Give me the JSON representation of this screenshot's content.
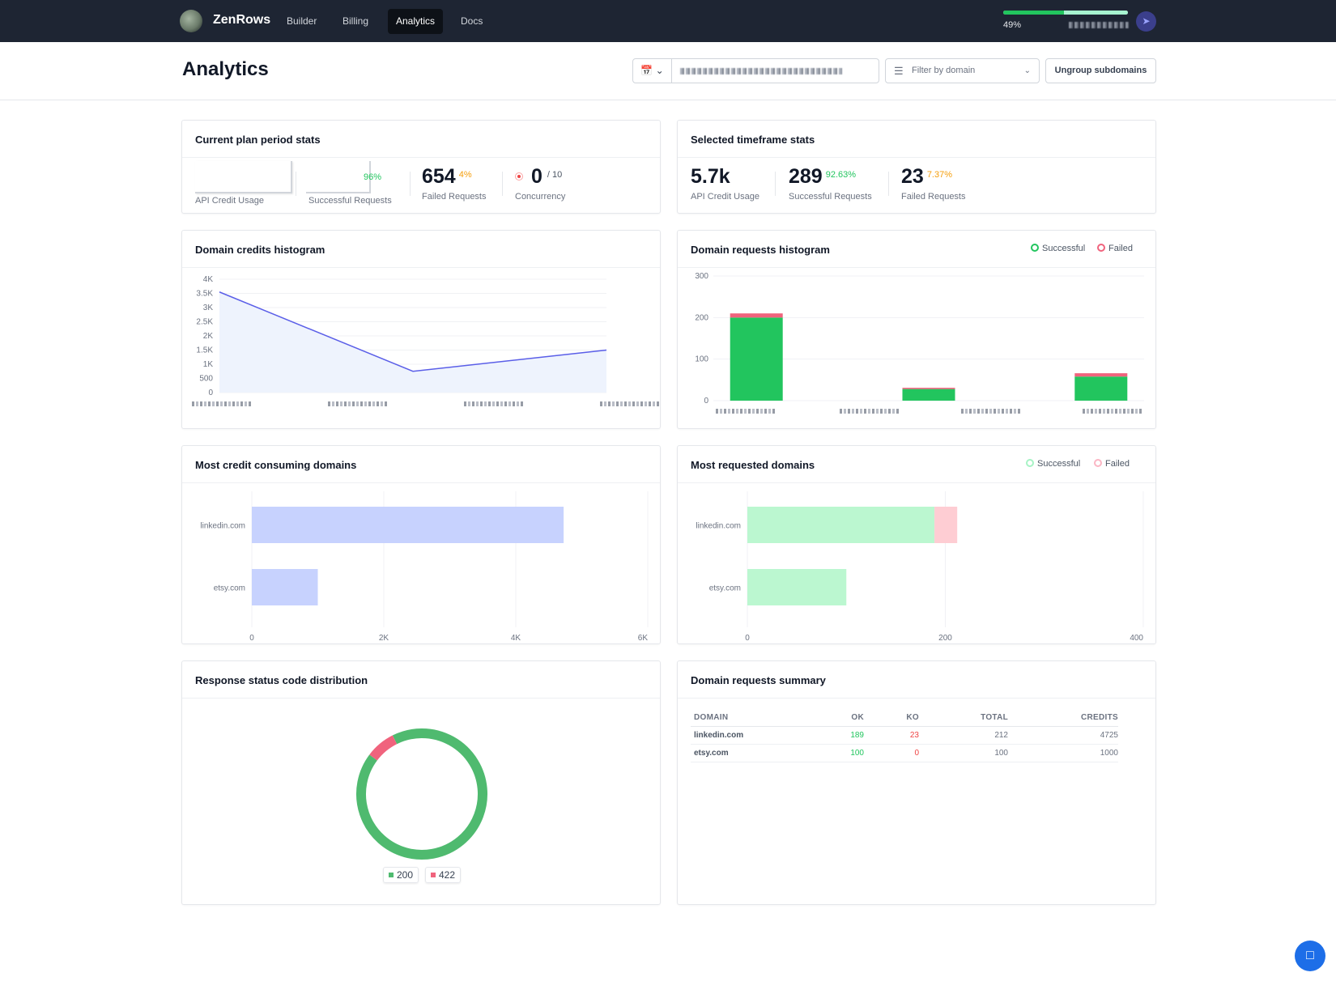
{
  "nav": {
    "brand": "ZenRows",
    "items": [
      {
        "label": "Builder",
        "active": false
      },
      {
        "label": "Billing",
        "active": false
      },
      {
        "label": "Analytics",
        "active": true
      },
      {
        "label": "Docs",
        "active": false
      }
    ],
    "usage_percent": 49,
    "usage_label": "49%"
  },
  "header": {
    "title": "Analytics",
    "filter_placeholder": "Filter by domain",
    "ungroup_label": "Ungroup subdomains"
  },
  "current_plan": {
    "title": "Current plan period stats",
    "credit_label": "API Credit Usage",
    "success_pct": "96%",
    "success_label": "Successful Requests",
    "failed_value": "654",
    "failed_pct": "4%",
    "failed_label": "Failed Requests",
    "concurrency_value": "0",
    "concurrency_max": "/ 10",
    "concurrency_label": "Concurrency"
  },
  "selected": {
    "title": "Selected timeframe stats",
    "credit_value": "5.7k",
    "credit_label": "API Credit Usage",
    "success_value": "289",
    "success_pct": "92.63%",
    "success_label": "Successful Requests",
    "failed_value": "23",
    "failed_pct": "7.37%",
    "failed_label": "Failed Requests"
  },
  "credits_hist": {
    "title": "Domain credits histogram"
  },
  "requests_hist": {
    "title": "Domain requests histogram",
    "legend_success": "Successful",
    "legend_failed": "Failed"
  },
  "credit_domains": {
    "title": "Most credit consuming domains"
  },
  "requested_domains": {
    "title": "Most requested domains",
    "legend_success": "Successful",
    "legend_failed": "Failed"
  },
  "status_dist": {
    "title": "Response status code distribution"
  },
  "summary": {
    "title": "Domain requests summary",
    "headers": [
      "DOMAIN",
      "OK",
      "KO",
      "TOTAL",
      "CREDITS"
    ],
    "rows": [
      [
        "linkedin.com",
        "189",
        "23",
        "212",
        "4725"
      ],
      [
        "etsy.com",
        "100",
        "0",
        "100",
        "1000"
      ]
    ]
  },
  "colors": {
    "success": "#22c55e",
    "failed": "#f0637d",
    "accent": "#5a5ee8"
  },
  "chart_data": [
    {
      "type": "area",
      "title": "Domain credits histogram",
      "yticks": [
        "0",
        "500",
        "1K",
        "1.5K",
        "2K",
        "2.5K",
        "3K",
        "3.5K",
        "4K"
      ],
      "ylim": [
        0,
        4000
      ],
      "values": [
        3550,
        750,
        1500
      ],
      "grid": true
    },
    {
      "type": "bar",
      "title": "Domain requests histogram",
      "yticks": [
        "0",
        "100",
        "200",
        "300"
      ],
      "ylim": [
        0,
        300
      ],
      "series": [
        {
          "name": "Successful",
          "values": [
            200,
            0,
            28,
            0,
            58
          ]
        },
        {
          "name": "Failed",
          "values": [
            10,
            0,
            3,
            0,
            8
          ]
        }
      ]
    },
    {
      "type": "bar",
      "orientation": "horizontal",
      "title": "Most credit consuming domains",
      "categories": [
        "linkedin.com",
        "etsy.com"
      ],
      "values": [
        4725,
        1000
      ],
      "xticks": [
        "0",
        "2K",
        "4K",
        "6K"
      ],
      "xlim": [
        0,
        6000
      ]
    },
    {
      "type": "bar",
      "orientation": "horizontal",
      "title": "Most requested domains",
      "categories": [
        "linkedin.com",
        "etsy.com"
      ],
      "series": [
        {
          "name": "Successful",
          "values": [
            189,
            100
          ]
        },
        {
          "name": "Failed",
          "values": [
            23,
            0
          ]
        }
      ],
      "xticks": [
        "0",
        "200",
        "400"
      ],
      "xlim": [
        0,
        400
      ]
    },
    {
      "type": "pie",
      "title": "Response status code distribution",
      "categories": [
        "200",
        "422"
      ],
      "values": [
        289,
        23
      ],
      "colors": [
        "#4fba6f",
        "#f0637d"
      ]
    }
  ]
}
